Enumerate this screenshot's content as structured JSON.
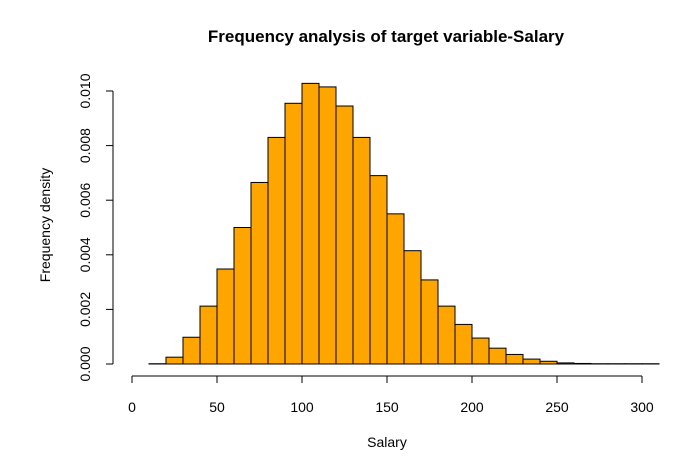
{
  "chart_data": {
    "type": "bar",
    "title": "Frequency analysis of target variable-Salary",
    "xlabel": "Salary",
    "ylabel": "Frequency density",
    "bar_color": "#FFA500",
    "edge_color": "#000000",
    "xlim": [
      0,
      310
    ],
    "ylim": [
      0,
      0.0104
    ],
    "x_ticks": [
      "0",
      "50",
      "100",
      "150",
      "200",
      "250",
      "300"
    ],
    "y_ticks": [
      "0.000",
      "0.002",
      "0.004",
      "0.006",
      "0.008",
      "0.010"
    ],
    "grid": false,
    "bin_width": 10,
    "bin_starts": [
      10,
      20,
      30,
      40,
      50,
      60,
      70,
      80,
      90,
      100,
      110,
      120,
      130,
      140,
      150,
      160,
      170,
      180,
      190,
      200,
      210,
      220,
      230,
      240,
      250,
      260,
      270,
      280,
      290,
      300
    ],
    "values": [
      1e-05,
      0.00025,
      0.00098,
      0.00212,
      0.00348,
      0.005,
      0.00665,
      0.0083,
      0.00955,
      0.01028,
      0.01015,
      0.00945,
      0.0083,
      0.0069,
      0.0055,
      0.00415,
      0.00308,
      0.00212,
      0.00145,
      0.00095,
      0.00058,
      0.00035,
      0.00018,
      0.0001,
      4e-05,
      2e-05,
      1e-05,
      1e-05,
      1e-05,
      1e-05
    ]
  }
}
